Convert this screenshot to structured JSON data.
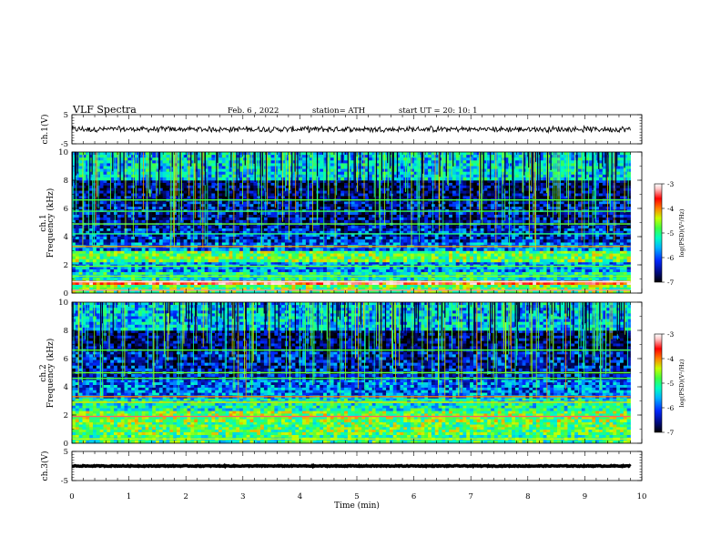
{
  "header": {
    "title": "VLF  Spectra",
    "date": "Feb. 6  , 2022",
    "station": "station= ATH",
    "start_ut": "start  UT  =    20: 10: 1"
  },
  "chart_data": [
    {
      "type": "line",
      "panel": "ch1-waveform",
      "ylabel": "ch.1(V)",
      "ylim": [
        -5,
        5
      ],
      "yticks": [
        "5",
        "-5"
      ],
      "x_range_min": [
        0,
        9.8
      ],
      "approx_level_v": 0,
      "style": "noisy trace"
    },
    {
      "type": "heatmap",
      "panel": "ch1-spectrogram",
      "ylabel": "ch.1\nFrequency  (kHz)",
      "ylim": [
        0,
        10
      ],
      "yticks": [
        "0",
        "2",
        "4",
        "6",
        "8",
        "10"
      ],
      "x_range_min": [
        0,
        9.8
      ],
      "colorbar": {
        "label": "log(PSD)(V²/Hz)",
        "ticks": [
          "-3",
          "-4",
          "-5",
          "-6",
          "-7"
        ],
        "range": [
          -7,
          -3
        ]
      },
      "bands_khz": [
        {
          "from": 0.0,
          "to": 0.6,
          "level": -5.0
        },
        {
          "from": 0.6,
          "to": 0.9,
          "level": -3.8
        },
        {
          "from": 0.9,
          "to": 1.5,
          "level": -5.4
        },
        {
          "from": 1.5,
          "to": 2.2,
          "level": -5.8
        },
        {
          "from": 2.2,
          "to": 3.0,
          "level": -5.0
        },
        {
          "from": 3.0,
          "to": 3.6,
          "level": -6.0
        },
        {
          "from": 3.6,
          "to": 4.6,
          "level": -6.3
        },
        {
          "from": 4.6,
          "to": 6.5,
          "level": -6.5
        },
        {
          "from": 6.5,
          "to": 8.0,
          "level": -6.7
        },
        {
          "from": 8.0,
          "to": 10.0,
          "level": -5.6
        }
      ],
      "lines_khz": [
        {
          "f": 0.2,
          "level": -3.5
        },
        {
          "f": 0.8,
          "level": -3.2
        },
        {
          "f": 1.2,
          "level": -4.8
        },
        {
          "f": 1.9,
          "level": -4.9
        },
        {
          "f": 3.3,
          "level": -4.3
        },
        {
          "f": 4.2,
          "level": -5.2
        },
        {
          "f": 4.9,
          "level": -4.9
        },
        {
          "f": 5.8,
          "level": -5.1
        },
        {
          "f": 6.6,
          "level": -5.0
        }
      ]
    },
    {
      "type": "heatmap",
      "panel": "ch2-spectrogram",
      "ylabel": "ch.2\nFrequency  (kHz)",
      "ylim": [
        0,
        10
      ],
      "yticks": [
        "0",
        "2",
        "4",
        "6",
        "8",
        "10"
      ],
      "x_range_min": [
        0,
        9.8
      ],
      "colorbar": {
        "label": "log(PSD)(V²/Hz)",
        "ticks": [
          "-3",
          "-4",
          "-5",
          "-6",
          "-7"
        ],
        "range": [
          -7,
          -3
        ]
      },
      "bands_khz": [
        {
          "from": 0.0,
          "to": 0.6,
          "level": -5.2
        },
        {
          "from": 0.6,
          "to": 1.5,
          "level": -5.0
        },
        {
          "from": 1.5,
          "to": 2.3,
          "level": -4.9
        },
        {
          "from": 2.3,
          "to": 3.2,
          "level": -5.4
        },
        {
          "from": 3.2,
          "to": 4.5,
          "level": -6.0
        },
        {
          "from": 4.5,
          "to": 6.5,
          "level": -6.4
        },
        {
          "from": 6.5,
          "to": 8.0,
          "level": -6.7
        },
        {
          "from": 8.0,
          "to": 10.0,
          "level": -5.7
        }
      ],
      "lines_khz": [
        {
          "f": 0.3,
          "level": -4.6
        },
        {
          "f": 1.9,
          "level": -3.6
        },
        {
          "f": 2.9,
          "level": -4.5
        },
        {
          "f": 3.3,
          "level": -4.2
        },
        {
          "f": 4.6,
          "level": -5.0
        },
        {
          "f": 5.0,
          "level": -4.9
        },
        {
          "f": 6.6,
          "level": -5.0
        }
      ]
    },
    {
      "type": "line",
      "panel": "ch3-waveform",
      "ylabel": "ch.3(V)",
      "ylim": [
        -5,
        5
      ],
      "yticks": [
        "5",
        "-5"
      ],
      "x_range_min": [
        0,
        9.8
      ],
      "approx_level_v": 0,
      "style": "thick flat trace"
    }
  ],
  "x_axis": {
    "label": "Time  (min)",
    "ticks": [
      "0",
      "1",
      "2",
      "3",
      "4",
      "5",
      "6",
      "7",
      "8",
      "9",
      "10"
    ],
    "range": [
      0,
      10
    ]
  },
  "colormap": [
    "#000000",
    "#000a80",
    "#0028ff",
    "#00b4ff",
    "#00ffc0",
    "#40ff40",
    "#c8ff00",
    "#ff8000",
    "#ff0000",
    "#ffc8c8",
    "#ffffff"
  ]
}
